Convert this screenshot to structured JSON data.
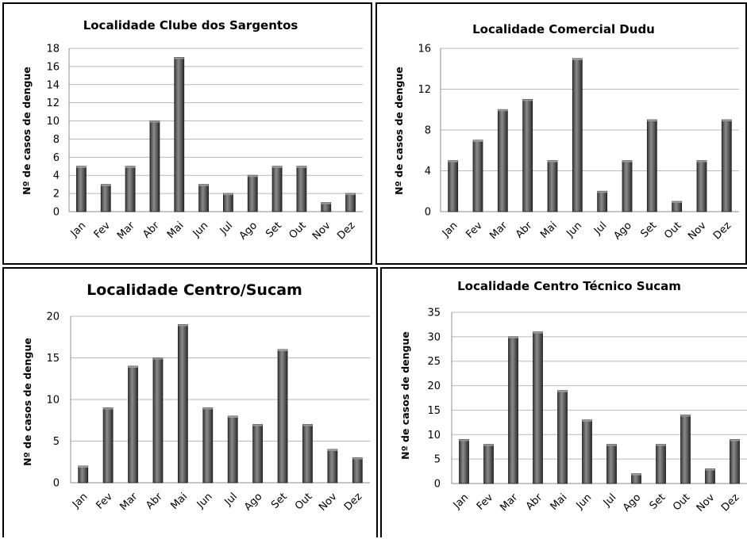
{
  "chart_data": [
    {
      "type": "bar",
      "title": "Localidade Clube dos Sargentos",
      "ylabel": "Nº de casos de dengue",
      "xlabel": "",
      "categories": [
        "Jan",
        "Fev",
        "Mar",
        "Abr",
        "Mai",
        "Jun",
        "Jul",
        "Ago",
        "Set",
        "Out",
        "Nov",
        "Dez"
      ],
      "values": [
        5,
        3,
        5,
        10,
        17,
        3,
        2,
        4,
        5,
        5,
        1,
        2
      ],
      "ylim": [
        0,
        18
      ],
      "yticks": [
        0,
        2,
        4,
        6,
        8,
        10,
        12,
        14,
        16,
        18
      ],
      "grid": true
    },
    {
      "type": "bar",
      "title": "Localidade Comercial Dudu",
      "ylabel": "Nº de casos de dengue",
      "xlabel": "",
      "categories": [
        "Jan",
        "Fev",
        "Mar",
        "Abr",
        "Mai",
        "Jun",
        "Jul",
        "Ago",
        "Set",
        "Out",
        "Nov",
        "Dez"
      ],
      "values": [
        5,
        7,
        10,
        11,
        5,
        15,
        2,
        5,
        9,
        1,
        5,
        9
      ],
      "ylim": [
        0,
        16
      ],
      "yticks": [
        0,
        4,
        8,
        12,
        16
      ],
      "grid": true
    },
    {
      "type": "bar",
      "title": "Localidade Centro/Sucam",
      "ylabel": "Nº de casos de dengue",
      "xlabel": "",
      "categories": [
        "Jan",
        "Fev",
        "Mar",
        "Abr",
        "Mai",
        "Jun",
        "Jul",
        "Ago",
        "Set",
        "Out",
        "Nov",
        "Dez"
      ],
      "values": [
        2,
        9,
        14,
        15,
        19,
        9,
        8,
        7,
        16,
        7,
        4,
        3
      ],
      "ylim": [
        0,
        20
      ],
      "yticks": [
        0,
        5,
        10,
        15,
        20
      ],
      "grid": true
    },
    {
      "type": "bar",
      "title": "Localidade Centro Técnico Sucam",
      "ylabel": "Nº de casos de dengue",
      "xlabel": "",
      "categories": [
        "Jan",
        "Fev",
        "Mar",
        "Abr",
        "Mai",
        "Jun",
        "Jul",
        "Ago",
        "Set",
        "Out",
        "Nov",
        "Dez"
      ],
      "values": [
        9,
        8,
        30,
        31,
        19,
        13,
        8,
        2,
        8,
        14,
        3,
        9
      ],
      "ylim": [
        0,
        35
      ],
      "yticks": [
        0,
        5,
        10,
        15,
        20,
        25,
        30,
        35
      ],
      "grid": true
    }
  ]
}
